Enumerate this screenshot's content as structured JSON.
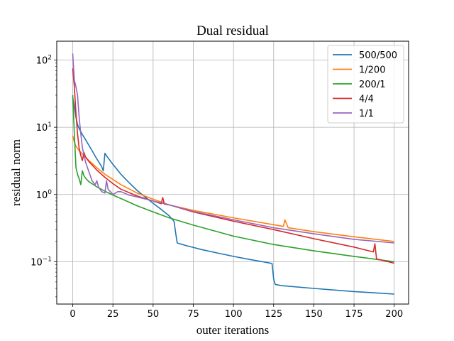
{
  "chart_data": {
    "type": "line",
    "title": "Dual residual",
    "xlabel": "outer iterations",
    "ylabel": "residual norm",
    "xlim": [
      -9.95,
      208.95
    ],
    "ylim_log10": [
      -1.63,
      2.28
    ],
    "yscale": "log",
    "grid": true,
    "legend_position": "top-right",
    "x_ticks": [
      0,
      25,
      50,
      75,
      100,
      125,
      150,
      175,
      200
    ],
    "x_tick_labels": [
      "0",
      "25",
      "50",
      "75",
      "100",
      "125",
      "150",
      "175",
      "200"
    ],
    "y_ticks": [
      0.1,
      1,
      10,
      100
    ],
    "y_tick_labels": [
      {
        "base": "10",
        "exp": "−1"
      },
      {
        "base": "10",
        "exp": "0"
      },
      {
        "base": "10",
        "exp": "1"
      },
      {
        "base": "10",
        "exp": "2"
      }
    ],
    "series": [
      {
        "name": "500/500",
        "color": "#1f77b4",
        "points": [
          [
            0,
            28
          ],
          [
            1,
            20
          ],
          [
            2,
            14
          ],
          [
            3,
            11
          ],
          [
            4,
            9.5
          ],
          [
            6,
            7.8
          ],
          [
            8,
            6.5
          ],
          [
            10,
            5.4
          ],
          [
            12,
            4.5
          ],
          [
            14,
            3.7
          ],
          [
            16,
            3.1
          ],
          [
            18,
            2.6
          ],
          [
            19,
            2.25
          ],
          [
            20,
            4.1
          ],
          [
            22,
            3.5
          ],
          [
            25,
            2.8
          ],
          [
            30,
            2.0
          ],
          [
            35,
            1.5
          ],
          [
            40,
            1.15
          ],
          [
            45,
            0.92
          ],
          [
            50,
            0.74
          ],
          [
            55,
            0.6
          ],
          [
            60,
            0.48
          ],
          [
            63,
            0.4
          ],
          [
            64,
            0.27
          ],
          [
            65,
            0.19
          ],
          [
            70,
            0.175
          ],
          [
            80,
            0.152
          ],
          [
            90,
            0.135
          ],
          [
            100,
            0.12
          ],
          [
            110,
            0.108
          ],
          [
            120,
            0.098
          ],
          [
            124,
            0.094
          ],
          [
            125,
            0.055
          ],
          [
            126,
            0.046
          ],
          [
            130,
            0.044
          ],
          [
            150,
            0.04
          ],
          [
            175,
            0.036
          ],
          [
            200,
            0.033
          ]
        ]
      },
      {
        "name": "1/200",
        "color": "#ff7f0e",
        "points": [
          [
            0,
            7.5
          ],
          [
            1,
            6.0
          ],
          [
            2,
            5.2
          ],
          [
            4,
            4.5
          ],
          [
            6,
            4.0
          ],
          [
            10,
            3.2
          ],
          [
            15,
            2.5
          ],
          [
            20,
            2.0
          ],
          [
            30,
            1.4
          ],
          [
            40,
            1.05
          ],
          [
            50,
            0.85
          ],
          [
            60,
            0.7
          ],
          [
            75,
            0.58
          ],
          [
            100,
            0.45
          ],
          [
            125,
            0.355
          ],
          [
            131,
            0.335
          ],
          [
            132,
            0.42
          ],
          [
            134,
            0.32
          ],
          [
            150,
            0.28
          ],
          [
            175,
            0.235
          ],
          [
            200,
            0.2
          ]
        ]
      },
      {
        "name": "200/1",
        "color": "#2ca02c",
        "points": [
          [
            0,
            30
          ],
          [
            1,
            8.0
          ],
          [
            2,
            2.5
          ],
          [
            3,
            2.0
          ],
          [
            4,
            1.7
          ],
          [
            5,
            1.4
          ],
          [
            6,
            2.25
          ],
          [
            7,
            1.9
          ],
          [
            8,
            1.75
          ],
          [
            10,
            1.55
          ],
          [
            15,
            1.3
          ],
          [
            20,
            1.12
          ],
          [
            25,
            0.98
          ],
          [
            30,
            0.87
          ],
          [
            40,
            0.68
          ],
          [
            50,
            0.55
          ],
          [
            60,
            0.45
          ],
          [
            75,
            0.35
          ],
          [
            100,
            0.24
          ],
          [
            125,
            0.18
          ],
          [
            150,
            0.145
          ],
          [
            175,
            0.12
          ],
          [
            200,
            0.1
          ]
        ]
      },
      {
        "name": "4/4",
        "color": "#d62728",
        "points": [
          [
            0,
            75
          ],
          [
            1,
            40
          ],
          [
            2,
            16
          ],
          [
            3,
            8
          ],
          [
            4,
            4.8
          ],
          [
            5,
            3.8
          ],
          [
            6,
            3.2
          ],
          [
            7,
            4.2
          ],
          [
            8,
            3.6
          ],
          [
            10,
            3.1
          ],
          [
            15,
            2.3
          ],
          [
            20,
            1.8
          ],
          [
            25,
            1.45
          ],
          [
            30,
            1.2
          ],
          [
            40,
            0.95
          ],
          [
            50,
            0.8
          ],
          [
            55,
            0.73
          ],
          [
            56,
            0.9
          ],
          [
            57,
            0.72
          ],
          [
            60,
            0.7
          ],
          [
            75,
            0.55
          ],
          [
            100,
            0.4
          ],
          [
            125,
            0.3
          ],
          [
            150,
            0.22
          ],
          [
            175,
            0.165
          ],
          [
            187,
            0.14
          ],
          [
            188,
            0.185
          ],
          [
            189,
            0.11
          ],
          [
            200,
            0.095
          ]
        ]
      },
      {
        "name": "1/1",
        "color": "#9467bd",
        "points": [
          [
            0,
            125
          ],
          [
            1,
            50
          ],
          [
            2,
            40
          ],
          [
            3,
            30
          ],
          [
            4,
            14
          ],
          [
            5,
            8
          ],
          [
            6,
            5
          ],
          [
            8,
            3.0
          ],
          [
            10,
            2.2
          ],
          [
            12,
            1.6
          ],
          [
            14,
            1.4
          ],
          [
            15,
            1.6
          ],
          [
            16,
            1.3
          ],
          [
            18,
            1.1
          ],
          [
            20,
            1.05
          ],
          [
            21,
            1.6
          ],
          [
            22,
            1.2
          ],
          [
            25,
            1.0
          ],
          [
            28,
            1.1
          ],
          [
            30,
            1.1
          ],
          [
            35,
            0.98
          ],
          [
            40,
            0.92
          ],
          [
            50,
            0.8
          ],
          [
            60,
            0.7
          ],
          [
            75,
            0.56
          ],
          [
            100,
            0.42
          ],
          [
            125,
            0.32
          ],
          [
            150,
            0.26
          ],
          [
            175,
            0.215
          ],
          [
            200,
            0.19
          ]
        ]
      }
    ]
  }
}
